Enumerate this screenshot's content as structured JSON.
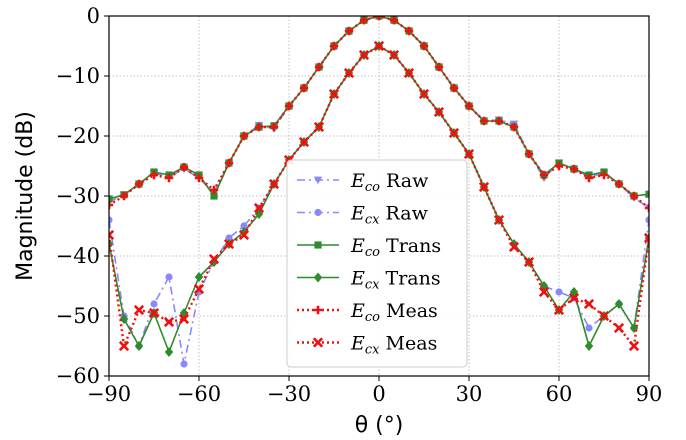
{
  "chart_data": {
    "type": "line",
    "title": "",
    "xlabel": "θ (°)",
    "ylabel": "Magnitude (dB)",
    "xlim": [
      -90,
      90
    ],
    "ylim": [
      -60,
      0
    ],
    "xticks": [
      -90,
      -60,
      -30,
      0,
      30,
      60,
      90
    ],
    "yticks": [
      0,
      -10,
      -20,
      -30,
      -40,
      -50,
      -60
    ],
    "xtick_labels": [
      "−90",
      "−60",
      "−30",
      "0",
      "30",
      "60",
      "90"
    ],
    "ytick_labels": [
      "0",
      "−10",
      "−20",
      "−30",
      "−40",
      "−50",
      "−60"
    ],
    "grid": true,
    "legend_position": "center",
    "series": [
      {
        "name": "E_co Raw",
        "label_main": "E",
        "label_sub": "co",
        "label_suffix": " Raw",
        "color": "#8888ff",
        "dash": "8,4,2,4",
        "marker": "triangle-down",
        "x": [
          -90,
          -85,
          -80,
          -75,
          -70,
          -65,
          -60,
          -55,
          -50,
          -45,
          -40,
          -35,
          -30,
          -25,
          -20,
          -15,
          -10,
          -5,
          0,
          5,
          10,
          15,
          20,
          25,
          30,
          35,
          40,
          45,
          50,
          55,
          60,
          65,
          70,
          75,
          80,
          85,
          90
        ],
        "y": [
          -31,
          -29.8,
          -28,
          -26.2,
          -26.8,
          -25.5,
          -27,
          -29.5,
          -24.5,
          -20,
          -18.2,
          -18.8,
          -15,
          -12,
          -8.5,
          -5,
          -2.5,
          -0.7,
          0,
          -0.7,
          -2.5,
          -5,
          -8.5,
          -12,
          -15,
          -17.5,
          -17.3,
          -18,
          -23,
          -27,
          -24.5,
          -25.5,
          -26.8,
          -26.2,
          -28,
          -30.3,
          -32
        ]
      },
      {
        "name": "E_cx Raw",
        "label_main": "E",
        "label_sub": "cx",
        "label_suffix": " Raw",
        "color": "#8888ff",
        "dash": "8,4,2,4",
        "marker": "circle",
        "x": [
          -90,
          -85,
          -80,
          -75,
          -70,
          -65,
          -60,
          -55,
          -50,
          -45,
          -40,
          -35,
          -30,
          -25,
          -20,
          -15,
          -10,
          -5,
          0,
          5,
          10,
          15,
          20,
          25,
          30,
          35,
          40,
          45,
          50,
          55,
          60,
          65,
          70,
          75,
          80,
          85,
          90
        ],
        "y": [
          -34,
          -50,
          -55,
          -48,
          -43.5,
          -58,
          -46,
          -41,
          -37,
          -35,
          -32,
          -28,
          -24,
          -21,
          -18.5,
          -13,
          -9.5,
          -6.5,
          -5,
          -6.5,
          -9.5,
          -13,
          -16,
          -19.5,
          -23,
          -28.5,
          -34,
          -38,
          -41,
          -45,
          -46,
          -47,
          -52,
          -50,
          -48,
          -52,
          -34
        ]
      },
      {
        "name": "E_co Trans",
        "label_main": "E",
        "label_sub": "co",
        "label_suffix": " Trans",
        "color": "#2e8b2e",
        "dash": "",
        "marker": "square",
        "x": [
          -90,
          -85,
          -80,
          -75,
          -70,
          -65,
          -60,
          -55,
          -50,
          -45,
          -40,
          -35,
          -30,
          -25,
          -20,
          -15,
          -10,
          -5,
          0,
          5,
          10,
          15,
          20,
          25,
          30,
          35,
          40,
          45,
          50,
          55,
          60,
          65,
          70,
          75,
          80,
          85,
          90
        ],
        "y": [
          -30.5,
          -29.8,
          -28,
          -26,
          -26.5,
          -25.2,
          -26.5,
          -30,
          -24.5,
          -20,
          -18.5,
          -18.3,
          -15,
          -12,
          -8.5,
          -5,
          -2.5,
          -0.7,
          0,
          -0.7,
          -2.5,
          -5,
          -8.5,
          -12,
          -15,
          -17.5,
          -17.5,
          -18.5,
          -23,
          -26.5,
          -24.5,
          -25.5,
          -26.5,
          -26,
          -28,
          -30,
          -29.7
        ]
      },
      {
        "name": "E_cx Trans",
        "label_main": "E",
        "label_sub": "cx",
        "label_suffix": " Trans",
        "color": "#2e8b2e",
        "dash": "",
        "marker": "diamond",
        "x": [
          -90,
          -85,
          -80,
          -75,
          -70,
          -65,
          -60,
          -55,
          -50,
          -45,
          -40,
          -35,
          -30,
          -25,
          -20,
          -15,
          -10,
          -5,
          0,
          5,
          10,
          15,
          20,
          25,
          30,
          35,
          40,
          45,
          50,
          55,
          60,
          65,
          70,
          75,
          80,
          85,
          90
        ],
        "y": [
          -38,
          -50.5,
          -55,
          -49.5,
          -56,
          -49.5,
          -43.5,
          -41,
          -38,
          -36,
          -33,
          -28,
          -24,
          -21,
          -18.5,
          -13,
          -9.5,
          -6.5,
          -5,
          -6.5,
          -9.5,
          -13,
          -16,
          -19.5,
          -23,
          -28.5,
          -34,
          -38,
          -41,
          -45,
          -49,
          -46,
          -55,
          -50,
          -48,
          -52,
          -37
        ]
      },
      {
        "name": "E_co Meas",
        "label_main": "E",
        "label_sub": "co",
        "label_suffix": " Meas",
        "color": "#ee1111",
        "dash": "2,3",
        "marker": "plus",
        "x": [
          -90,
          -85,
          -80,
          -75,
          -70,
          -65,
          -60,
          -55,
          -50,
          -45,
          -40,
          -35,
          -30,
          -25,
          -20,
          -15,
          -10,
          -5,
          0,
          5,
          10,
          15,
          20,
          25,
          30,
          35,
          40,
          45,
          50,
          55,
          60,
          65,
          70,
          75,
          80,
          85,
          90
        ],
        "y": [
          -31.5,
          -30,
          -28,
          -26.5,
          -27,
          -25.2,
          -27,
          -29,
          -24.5,
          -20,
          -18.5,
          -18.5,
          -15,
          -12,
          -8.5,
          -5,
          -2.5,
          -0.7,
          0,
          -0.7,
          -2.5,
          -5,
          -8.5,
          -12,
          -15,
          -17.5,
          -17.5,
          -18.5,
          -23,
          -26.5,
          -25,
          -25.5,
          -27,
          -26.5,
          -28,
          -30,
          -32
        ]
      },
      {
        "name": "E_cx Meas",
        "label_main": "E",
        "label_sub": "cx",
        "label_suffix": " Meas",
        "color": "#ee1111",
        "dash": "2,3",
        "marker": "x",
        "x": [
          -90,
          -85,
          -80,
          -75,
          -70,
          -65,
          -60,
          -55,
          -50,
          -45,
          -40,
          -35,
          -30,
          -25,
          -20,
          -15,
          -10,
          -5,
          0,
          5,
          10,
          15,
          20,
          25,
          30,
          35,
          40,
          45,
          50,
          55,
          60,
          65,
          70,
          75,
          80,
          85,
          90
        ],
        "y": [
          -36.5,
          -55,
          -49,
          -49.5,
          -51,
          -50.5,
          -45.5,
          -40.5,
          -38,
          -36.5,
          -32,
          -28,
          -24,
          -21,
          -18.5,
          -13,
          -9.5,
          -6.5,
          -5,
          -6.5,
          -9.5,
          -13,
          -16,
          -19.5,
          -23,
          -28.5,
          -34,
          -38.5,
          -41,
          -46,
          -49,
          -47,
          -48,
          -50,
          -52,
          -55,
          -37
        ]
      }
    ]
  }
}
